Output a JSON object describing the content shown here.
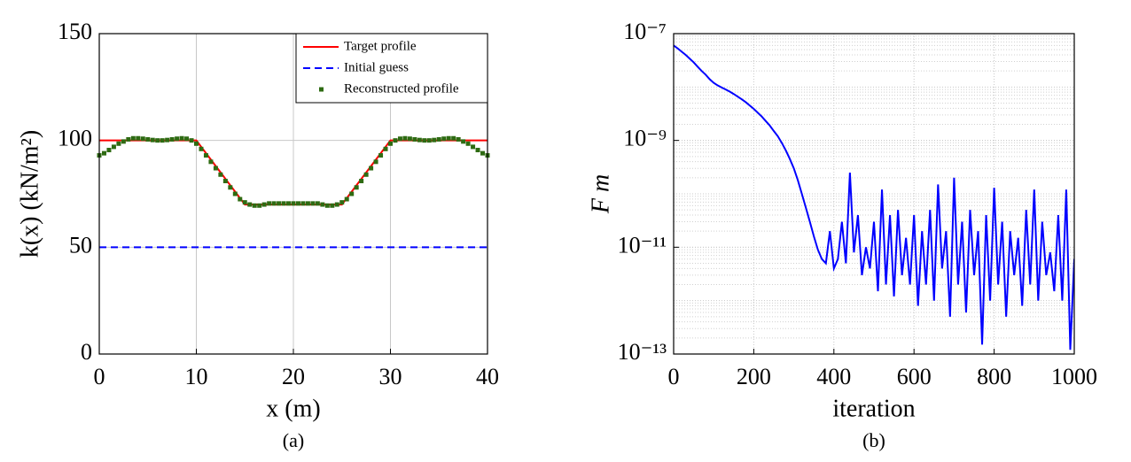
{
  "chart_data": [
    {
      "type": "line",
      "caption": "(a)",
      "xlabel": "x (m)",
      "ylabel": "k(x) (kN/m²)",
      "xlim": [
        0,
        40
      ],
      "ylim": [
        0,
        150
      ],
      "xticks": [
        0,
        10,
        20,
        30,
        40
      ],
      "yticks": [
        0,
        50,
        100,
        150
      ],
      "grid": true,
      "legend": "upper right",
      "series": [
        {
          "name": "Target profile",
          "color": "#ff0000",
          "linestyle": "solid",
          "x": [
            0,
            10,
            15,
            25,
            30,
            40
          ],
          "values": [
            100,
            100,
            70,
            70,
            100,
            100
          ]
        },
        {
          "name": "Initial guess",
          "color": "#0000ff",
          "linestyle": "dashed",
          "x": [
            0,
            40
          ],
          "values": [
            50,
            50
          ]
        },
        {
          "name": "Reconstructed profile",
          "color": "#2e6b12",
          "linestyle": "none",
          "marker": "square",
          "x": [
            0,
            0.5,
            1,
            1.5,
            2,
            2.5,
            3,
            3.5,
            4,
            4.5,
            5,
            5.5,
            6,
            6.5,
            7,
            7.5,
            8,
            8.5,
            9,
            9.5,
            10,
            10.5,
            11,
            11.5,
            12,
            12.5,
            13,
            13.5,
            14,
            14.5,
            15,
            15.5,
            16,
            16.5,
            17,
            17.5,
            18,
            18.5,
            19,
            19.5,
            20,
            20.5,
            21,
            21.5,
            22,
            22.5,
            23,
            23.5,
            24,
            24.5,
            25,
            25.5,
            26,
            26.5,
            27,
            27.5,
            28,
            28.5,
            29,
            29.5,
            30,
            30.5,
            31,
            31.5,
            32,
            32.5,
            33,
            33.5,
            34,
            34.5,
            35,
            35.5,
            36,
            36.5,
            37,
            37.5,
            38,
            38.5,
            39,
            39.5,
            40
          ],
          "values": [
            93,
            94,
            95.5,
            97,
            98.5,
            99.5,
            100.5,
            101,
            101,
            100.8,
            100.5,
            100.2,
            100,
            100,
            100.2,
            100.5,
            100.8,
            101,
            100.8,
            100,
            98.5,
            96,
            93,
            90,
            87,
            84,
            81,
            78,
            75,
            72.5,
            71,
            70,
            69.5,
            69.5,
            70,
            70.5,
            70.5,
            70.5,
            70.5,
            70.5,
            70.5,
            70.5,
            70.5,
            70.5,
            70.5,
            70.5,
            70,
            69.5,
            69.5,
            70,
            71,
            72.5,
            75,
            78,
            81,
            84,
            87,
            90,
            93,
            96,
            98.5,
            100,
            100.8,
            101,
            100.8,
            100.5,
            100.2,
            100,
            100,
            100.2,
            100.5,
            100.8,
            101,
            101,
            100.5,
            99.5,
            98.5,
            97,
            95.5,
            94,
            93
          ]
        }
      ]
    },
    {
      "type": "line",
      "caption": "(b)",
      "xlabel": "iteration",
      "ylabel": "F m",
      "xlim": [
        0,
        1000
      ],
      "ylim": [
        1e-13,
        1e-07
      ],
      "yscale": "log",
      "grid": true,
      "minor_grid": true,
      "xticks": [
        0,
        200,
        400,
        600,
        800,
        1000
      ],
      "yticks": [
        {
          "value": 1e-13,
          "label": "10⁻¹³"
        },
        {
          "value": 1e-11,
          "label": "10⁻¹¹"
        },
        {
          "value": 1e-09,
          "label": "10⁻⁹"
        },
        {
          "value": 1e-07,
          "label": "10⁻⁷"
        }
      ],
      "series": [
        {
          "color": "#0000ff",
          "linestyle": "solid",
          "x": [
            0,
            10,
            20,
            30,
            40,
            50,
            60,
            70,
            80,
            90,
            100,
            110,
            120,
            130,
            140,
            150,
            160,
            170,
            180,
            190,
            200,
            210,
            220,
            230,
            240,
            250,
            260,
            270,
            280,
            290,
            300,
            310,
            320,
            330,
            340,
            350,
            360,
            370,
            380,
            390,
            400,
            410,
            420,
            430,
            440,
            450,
            460,
            470,
            480,
            490,
            500,
            510,
            520,
            530,
            540,
            550,
            560,
            570,
            580,
            590,
            600,
            610,
            620,
            630,
            640,
            650,
            660,
            670,
            680,
            690,
            700,
            710,
            720,
            730,
            740,
            750,
            760,
            770,
            780,
            790,
            800,
            810,
            820,
            830,
            840,
            850,
            860,
            870,
            880,
            890,
            900,
            910,
            920,
            930,
            940,
            950,
            960,
            970,
            980,
            990,
            1000
          ],
          "values": [
            6e-08,
            5.3e-08,
            4.6e-08,
            4e-08,
            3.4e-08,
            2.9e-08,
            2.4e-08,
            2e-08,
            1.7e-08,
            1.4e-08,
            1.2e-08,
            1.07e-08,
            9.8e-09,
            9e-09,
            8.2e-09,
            7.4e-09,
            6.6e-09,
            5.9e-09,
            5.2e-09,
            4.5e-09,
            3.9e-09,
            3.3e-09,
            2.8e-09,
            2.3e-09,
            1.9e-09,
            1.5e-09,
            1.2e-09,
            9e-10,
            6.5e-10,
            4.5e-10,
            3e-10,
            1.8e-10,
            1e-10,
            5.5e-11,
            3e-11,
            1.6e-11,
            9e-12,
            6e-12,
            5e-12,
            2e-11,
            4e-12,
            6e-12,
            3e-11,
            5e-12,
            2.5e-10,
            8e-12,
            4e-11,
            3e-12,
            1e-11,
            4e-12,
            3e-11,
            1.5e-12,
            1.2e-10,
            2e-12,
            4e-11,
            1.2e-12,
            5e-11,
            3e-12,
            1.5e-11,
            2e-12,
            4e-11,
            8e-13,
            2e-11,
            2e-12,
            5e-11,
            1e-12,
            1.5e-10,
            4e-12,
            2e-11,
            5e-13,
            2e-10,
            2e-12,
            3e-11,
            6e-13,
            5e-11,
            3e-12,
            2e-11,
            1.5e-13,
            4e-11,
            1e-12,
            1.3e-10,
            2e-12,
            3e-11,
            5e-13,
            2e-11,
            3e-12,
            1.5e-11,
            8e-13,
            5e-11,
            2e-12,
            1.2e-10,
            1e-12,
            3e-11,
            3e-12,
            8e-12,
            1.5e-12,
            4e-11,
            1e-12,
            1.2e-10,
            1.2e-13,
            6e-12
          ]
        }
      ]
    }
  ]
}
